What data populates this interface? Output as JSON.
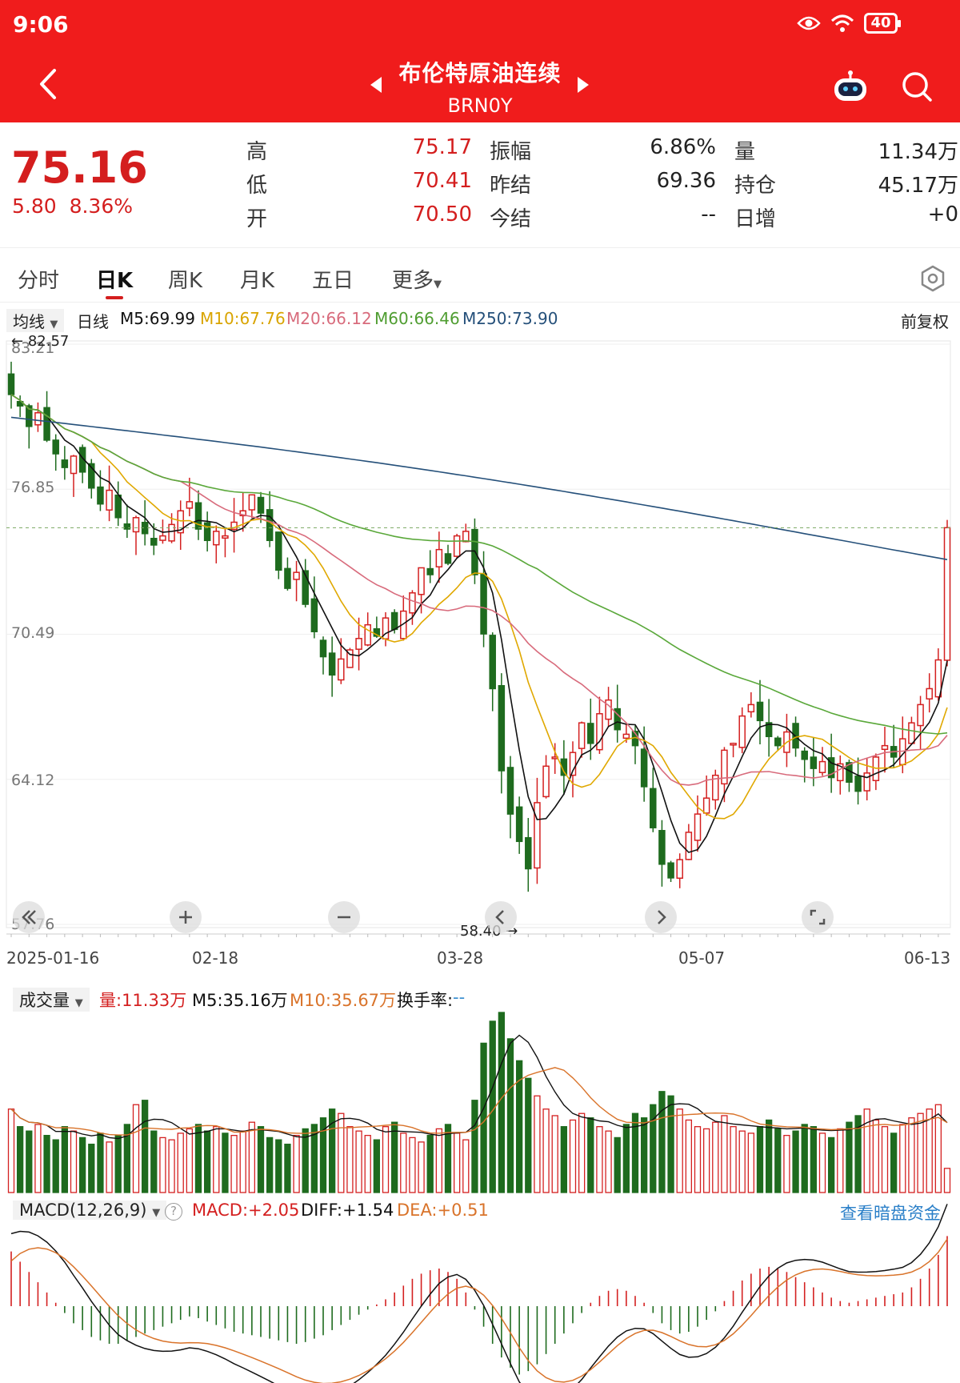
{
  "status_bar": {
    "time": "9:06",
    "battery": "40"
  },
  "header": {
    "title": "布伦特原油连续",
    "symbol": "BRN0Y"
  },
  "quote": {
    "last": "75.16",
    "change": "5.80",
    "change_pct": "8.36%",
    "stats": [
      {
        "label": "高",
        "value": "75.17",
        "color": "red"
      },
      {
        "label": "振幅",
        "value": "6.86%",
        "color": "dark"
      },
      {
        "label": "量",
        "value": "11.34万",
        "color": "dark"
      },
      {
        "label": "低",
        "value": "70.41",
        "color": "red"
      },
      {
        "label": "昨结",
        "value": "69.36",
        "color": "dark"
      },
      {
        "label": "持仓",
        "value": "45.17万",
        "color": "dark"
      },
      {
        "label": "开",
        "value": "70.50",
        "color": "red"
      },
      {
        "label": "今结",
        "value": "--",
        "color": "dark"
      },
      {
        "label": "日增",
        "value": "+0",
        "color": "dark"
      }
    ]
  },
  "tabs": [
    "分时",
    "日K",
    "周K",
    "月K",
    "五日",
    "更多"
  ],
  "active_tab": "日K",
  "ma_legend": {
    "selector": "均线",
    "period": "日线",
    "m5": "M5:69.99",
    "m10": "M10:67.76",
    "m20": "M20:66.12",
    "m60": "M60:66.46",
    "m250": "M250:73.90",
    "adjust": "前复权"
  },
  "price_axis": {
    "labels": [
      "83.21",
      "76.85",
      "70.49",
      "64.12",
      "57.76"
    ],
    "max_marker": "82.57",
    "min_marker": "58.40"
  },
  "dates": [
    "2025-01-16",
    "02-18",
    "03-28",
    "05-07",
    "06-13"
  ],
  "volume_legend": {
    "selector": "成交量",
    "vol": "量:11.33万",
    "m5": "M5:35.16万",
    "m10": "M10:35.67万",
    "turnover": "换手率:",
    "turnover_val": "--"
  },
  "macd_legend": {
    "selector": "MACD(12,26,9)",
    "help": "?",
    "macd": "MACD:+2.05",
    "diff": "DIFF:+1.54",
    "dea": "DEA:+0.51",
    "link": "查看暗盘资金"
  },
  "colors": {
    "up": "#d42020",
    "down": "#1e6b1e",
    "m5": "#111111",
    "m10": "#e0a800",
    "m20": "#d86b7c",
    "m60": "#5aa83a",
    "m250": "#25507a",
    "header": "#f01c1c"
  },
  "chart_data": {
    "type": "candlestick",
    "ylim": [
      57.76,
      83.21
    ],
    "closes": [
      81.0,
      80.5,
      79.6,
      80.2,
      79.0,
      78.4,
      77.8,
      78.3,
      77.6,
      76.9,
      76.2,
      76.8,
      75.6,
      75.1,
      75.6,
      74.9,
      74.4,
      74.8,
      75.3,
      75.9,
      76.3,
      75.1,
      74.6,
      75.0,
      74.8,
      75.4,
      75.9,
      76.6,
      75.8,
      74.6,
      73.3,
      72.5,
      73.2,
      71.8,
      70.6,
      69.5,
      68.7,
      69.4,
      69.8,
      70.3,
      70.9,
      70.4,
      71.2,
      70.7,
      71.5,
      72.3,
      73.4,
      73.1,
      74.2,
      73.6,
      74.8,
      75.0,
      73.1,
      70.5,
      68.1,
      64.5,
      62.6,
      61.4,
      60.2,
      63.1,
      64.7,
      65.1,
      64.3,
      65.3,
      66.6,
      65.7,
      67.0,
      67.6,
      66.3,
      66.1,
      65.6,
      63.8,
      62.0,
      60.4,
      59.8,
      60.6,
      61.8,
      62.6,
      63.3,
      64.3,
      65.4,
      65.7,
      66.9,
      67.4,
      66.7,
      66.0,
      65.6,
      66.2,
      65.5,
      65.0,
      64.6,
      64.9,
      64.2,
      64.8,
      64.0,
      63.6,
      64.4,
      65.1,
      65.6,
      65.1,
      65.9,
      66.6,
      67.4,
      68.1,
      69.36,
      75.16
    ],
    "ma250_start": 80.0,
    "ma250_end": 73.9,
    "volume": [
      38,
      30,
      28,
      31,
      26,
      24,
      30,
      28,
      25,
      22,
      27,
      23,
      26,
      31,
      40,
      42,
      28,
      25,
      24,
      27,
      29,
      31,
      28,
      30,
      27,
      26,
      28,
      32,
      30,
      25,
      24,
      22,
      26,
      29,
      31,
      34,
      38,
      36,
      30,
      28,
      26,
      24,
      30,
      32,
      27,
      25,
      23,
      26,
      29,
      31,
      27,
      24,
      42,
      68,
      78,
      82,
      70,
      60,
      52,
      44,
      38,
      35,
      30,
      33,
      36,
      34,
      30,
      28,
      25,
      31,
      36,
      34,
      40,
      46,
      44,
      38,
      33,
      30,
      29,
      32,
      35,
      30,
      28,
      27,
      30,
      33,
      29,
      26,
      28,
      31,
      30,
      27,
      25,
      29,
      32,
      35,
      38,
      33,
      30,
      27,
      31,
      34,
      36,
      38,
      40,
      11
    ],
    "macd_hist": [
      1.6,
      1.3,
      1.0,
      0.7,
      0.4,
      0.1,
      -0.2,
      -0.5,
      -0.7,
      -0.9,
      -1.0,
      -1.1,
      -1.1,
      -1.0,
      -0.9,
      -0.8,
      -0.7,
      -0.6,
      -0.5,
      -0.4,
      -0.3,
      -0.35,
      -0.45,
      -0.55,
      -0.65,
      -0.75,
      -0.8,
      -0.85,
      -0.9,
      -0.95,
      -1.0,
      -1.05,
      -1.1,
      -1.05,
      -0.95,
      -0.85,
      -0.7,
      -0.55,
      -0.4,
      -0.25,
      -0.1,
      0.05,
      0.2,
      0.4,
      0.6,
      0.8,
      0.95,
      1.05,
      1.1,
      1.0,
      0.8,
      0.4,
      -0.1,
      -0.6,
      -1.1,
      -1.5,
      -1.8,
      -2.0,
      -1.9,
      -1.7,
      -1.4,
      -1.1,
      -0.8,
      -0.5,
      -0.2,
      0.1,
      0.3,
      0.45,
      0.5,
      0.45,
      0.3,
      0.1,
      -0.2,
      -0.5,
      -0.7,
      -0.8,
      -0.75,
      -0.6,
      -0.4,
      -0.15,
      0.15,
      0.45,
      0.75,
      0.95,
      1.1,
      1.15,
      1.1,
      1.0,
      0.85,
      0.7,
      0.55,
      0.4,
      0.25,
      0.15,
      0.1,
      0.15,
      0.2,
      0.25,
      0.3,
      0.35,
      0.4,
      0.55,
      0.8,
      1.1,
      1.5,
      2.05
    ],
    "y_labels": [
      "83.21",
      "76.85",
      "70.49",
      "64.12",
      "57.76"
    ]
  }
}
